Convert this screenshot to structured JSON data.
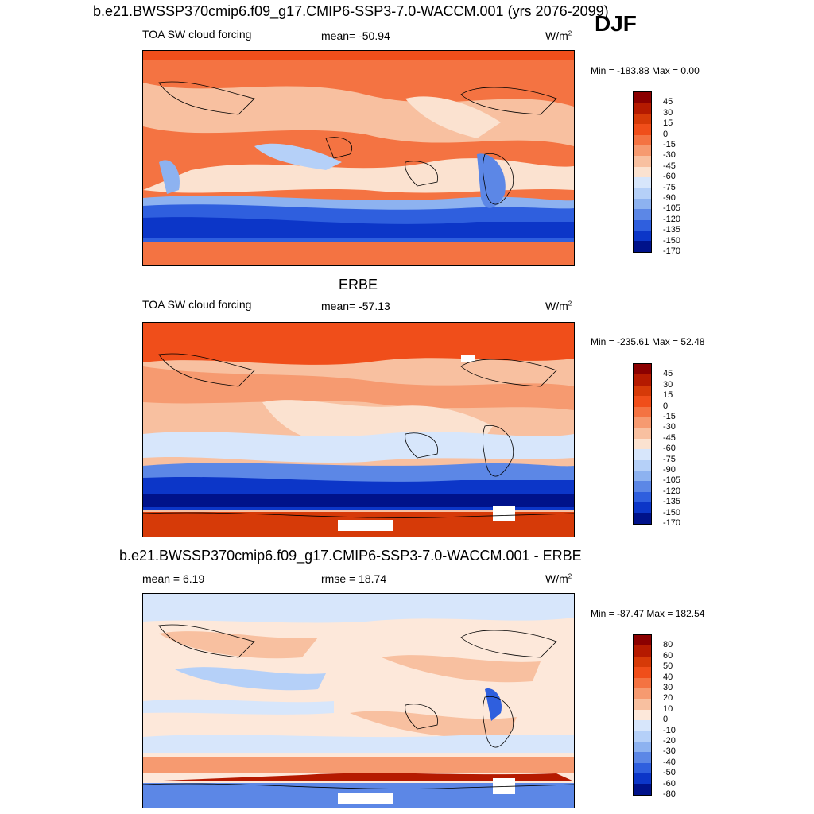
{
  "header": {
    "title": "b.e21.BWSSP370cmip6.f09_g17.CMIP6-SSP3-7.0-WACCM.001 (yrs 2076-2099)",
    "season": "DJF"
  },
  "panel1": {
    "left_label": "TOA SW cloud forcing",
    "stat": "mean= -50.94",
    "units": "W/m",
    "units_sup": "2",
    "minmax": "Min = -183.88 Max =   0.00",
    "levels": [
      "45",
      "30",
      "15",
      "0",
      "-15",
      "-30",
      "-45",
      "-60",
      "-75",
      "-90",
      "-105",
      "-120",
      "-135",
      "-150",
      "-170"
    ]
  },
  "panel2": {
    "title": "ERBE",
    "left_label": "TOA SW cloud forcing",
    "stat": "mean= -57.13",
    "units": "W/m",
    "units_sup": "2",
    "minmax": "Min = -235.61 Max =  52.48",
    "levels": [
      "45",
      "30",
      "15",
      "0",
      "-15",
      "-30",
      "-45",
      "-60",
      "-75",
      "-90",
      "-105",
      "-120",
      "-135",
      "-150",
      "-170"
    ]
  },
  "panel3": {
    "title": "b.e21.BWSSP370cmip6.f09_g17.CMIP6-SSP3-7.0-WACCM.001 - ERBE",
    "left_label": "mean =   6.19",
    "stat": "rmse =  18.74",
    "units": "W/m",
    "units_sup": "2",
    "minmax": "Min = -87.47 Max = 182.54",
    "levels": [
      "80",
      "60",
      "50",
      "40",
      "30",
      "20",
      "10",
      "0",
      "-10",
      "-20",
      "-30",
      "-40",
      "-50",
      "-60",
      "-80"
    ]
  },
  "colors": {
    "abs_scale": [
      "#8b0000",
      "#b51a00",
      "#d63a08",
      "#f04e1a",
      "#f47342",
      "#f69a70",
      "#f8c0a0",
      "#fbe2d0",
      "#d7e6fb",
      "#b5d0f8",
      "#8db2f0",
      "#5c87e6",
      "#2f5fde",
      "#0c36c8",
      "#00128a"
    ],
    "diff_scale": [
      "#8b0000",
      "#b51a00",
      "#d63a08",
      "#f04e1a",
      "#f47342",
      "#f69a70",
      "#f8c0a0",
      "#fde8da",
      "#d7e6fb",
      "#b5d0f8",
      "#8db2f0",
      "#5c87e6",
      "#2f5fde",
      "#0c36c8",
      "#00128a"
    ]
  }
}
